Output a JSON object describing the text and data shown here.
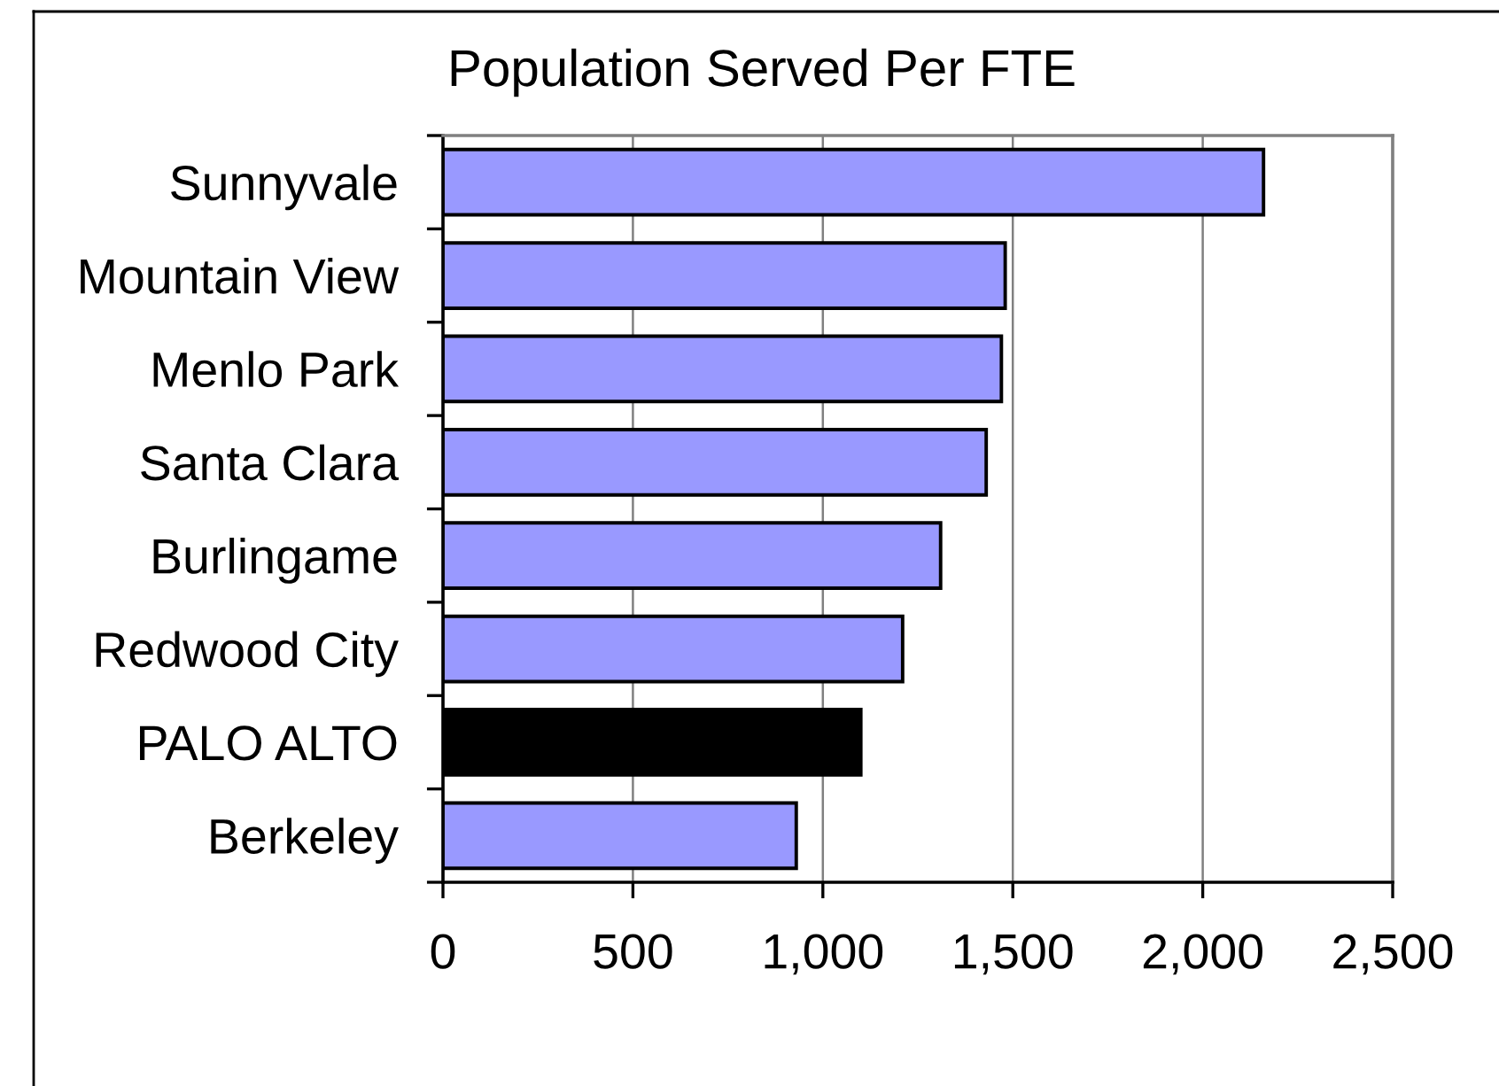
{
  "chart_data": {
    "type": "bar",
    "orientation": "horizontal",
    "title": "Population Served Per FTE",
    "categories": [
      "Sunnyvale",
      "Mountain View",
      "Menlo Park",
      "Santa Clara",
      "Burlingame",
      "Redwood City",
      "PALO ALTO",
      "Berkeley"
    ],
    "values": [
      2160,
      1480,
      1470,
      1430,
      1310,
      1210,
      1100,
      930
    ],
    "colors": [
      "#9999ff",
      "#9999ff",
      "#9999ff",
      "#9999ff",
      "#9999ff",
      "#9999ff",
      "#000000",
      "#9999ff"
    ],
    "xlim": [
      0,
      2500
    ],
    "xticks": [
      0,
      500,
      {
        "value": 1000,
        "label": "1,000"
      },
      {
        "value": 1500,
        "label": "1,500"
      },
      {
        "value": 2000,
        "label": "2,000"
      },
      {
        "value": 2500,
        "label": "2,500"
      }
    ],
    "grid": "x"
  }
}
